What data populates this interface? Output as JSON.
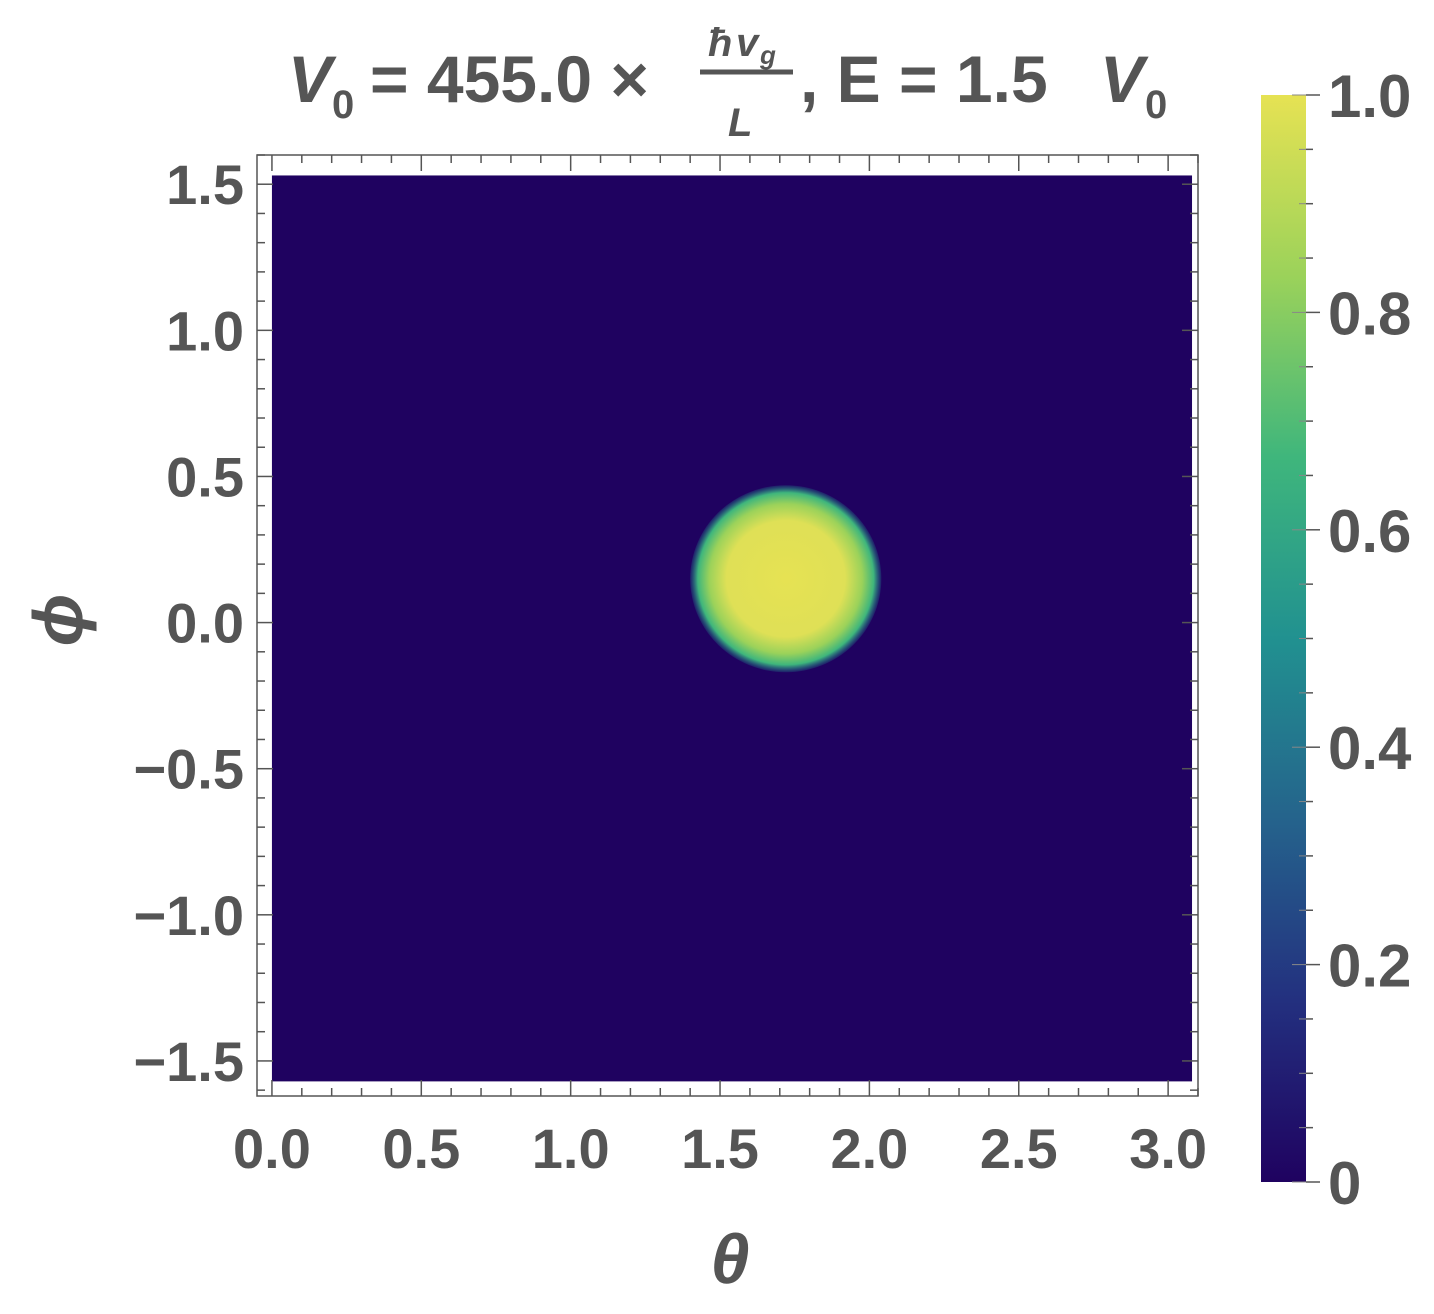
{
  "chart_data": {
    "type": "heatmap",
    "title": {
      "v0_symbol": "V",
      "v0_sub": "0",
      "equals_value": "= 455.0 ×",
      "frac_num_hbar": "ħ",
      "frac_num_v": "v",
      "frac_num_sub": "g",
      "frac_den": "L",
      "tail_text": ", E = 1.5",
      "tail_symbol": "V",
      "tail_sub": "0"
    },
    "xlabel": "θ",
    "ylabel": "ϕ",
    "xlim": [
      -0.05,
      3.1
    ],
    "ylim": [
      -1.62,
      1.6
    ],
    "x_ticks": [
      {
        "value": 0.0,
        "label": "0.0"
      },
      {
        "value": 0.5,
        "label": "0.5"
      },
      {
        "value": 1.0,
        "label": "1.0"
      },
      {
        "value": 1.5,
        "label": "1.5"
      },
      {
        "value": 2.0,
        "label": "2.0"
      },
      {
        "value": 2.5,
        "label": "2.5"
      },
      {
        "value": 3.0,
        "label": "3.0"
      }
    ],
    "y_ticks": [
      {
        "value": 1.5,
        "label": "1.5"
      },
      {
        "value": 1.0,
        "label": "1.0"
      },
      {
        "value": 0.5,
        "label": "0.5"
      },
      {
        "value": 0.0,
        "label": "0.0"
      },
      {
        "value": -0.5,
        "label": "−0.5"
      },
      {
        "value": -1.0,
        "label": "−1.0"
      },
      {
        "value": -1.5,
        "label": "−1.5"
      }
    ],
    "data_extent": {
      "theta": [
        0.0,
        3.08
      ],
      "phi": [
        -1.57,
        1.53
      ]
    },
    "background_value": 0.0,
    "spot": {
      "theta_center": 1.72,
      "phi_center": 0.15,
      "radius": 0.32,
      "peak_value": 1.0
    },
    "colorbar": {
      "range": [
        0,
        1
      ],
      "ticks": [
        {
          "value": 0,
          "label": "0"
        },
        {
          "value": 0.2,
          "label": "0.2"
        },
        {
          "value": 0.4,
          "label": "0.4"
        },
        {
          "value": 0.6,
          "label": "0.6"
        },
        {
          "value": 0.8,
          "label": "0.8"
        },
        {
          "value": 1.0,
          "label": "1.0"
        }
      ],
      "colormap": [
        "#1f0260",
        "#23307f",
        "#25638c",
        "#219190",
        "#3fb67c",
        "#9bd25a",
        "#e6e253"
      ]
    },
    "grid": false,
    "legend": "none"
  }
}
